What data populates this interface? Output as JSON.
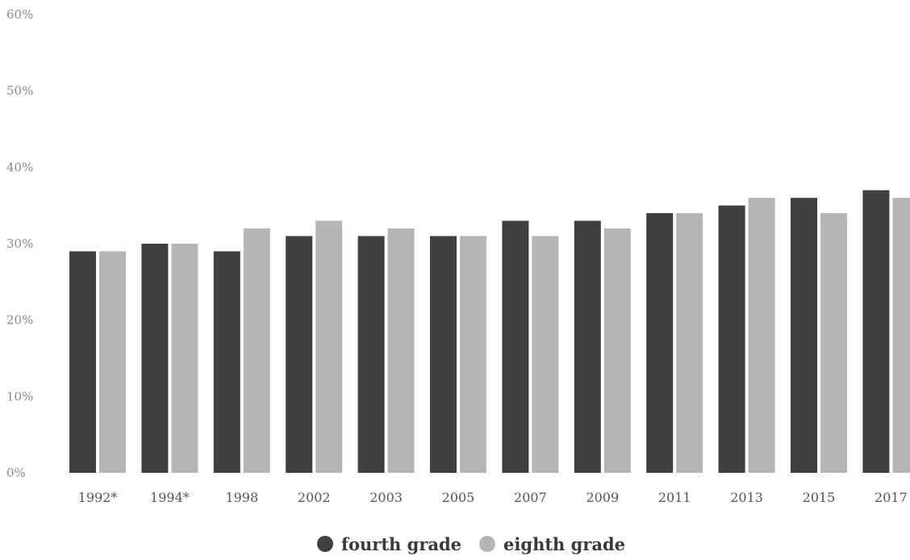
{
  "chart_data": {
    "type": "bar",
    "title": "",
    "xlabel": "",
    "ylabel": "",
    "categories": [
      "1992*",
      "1994*",
      "1998",
      "2002",
      "2003",
      "2005",
      "2007",
      "2009",
      "2011",
      "2013",
      "2015",
      "2017"
    ],
    "series": [
      {
        "name": "fourth grade",
        "color": "#3f3f3f",
        "values": [
          29,
          30,
          29,
          31,
          31,
          31,
          33,
          33,
          34,
          35,
          36,
          37
        ]
      },
      {
        "name": "eighth grade",
        "color": "#b5b5b5",
        "values": [
          29,
          30,
          32,
          33,
          32,
          31,
          31,
          32,
          34,
          36,
          34,
          36
        ]
      }
    ],
    "ylim": [
      0,
      60
    ],
    "yticks": [
      "0%",
      "10%",
      "20%",
      "30%",
      "40%",
      "50%",
      "60%"
    ],
    "grid": false,
    "legend_position": "bottom-center"
  }
}
